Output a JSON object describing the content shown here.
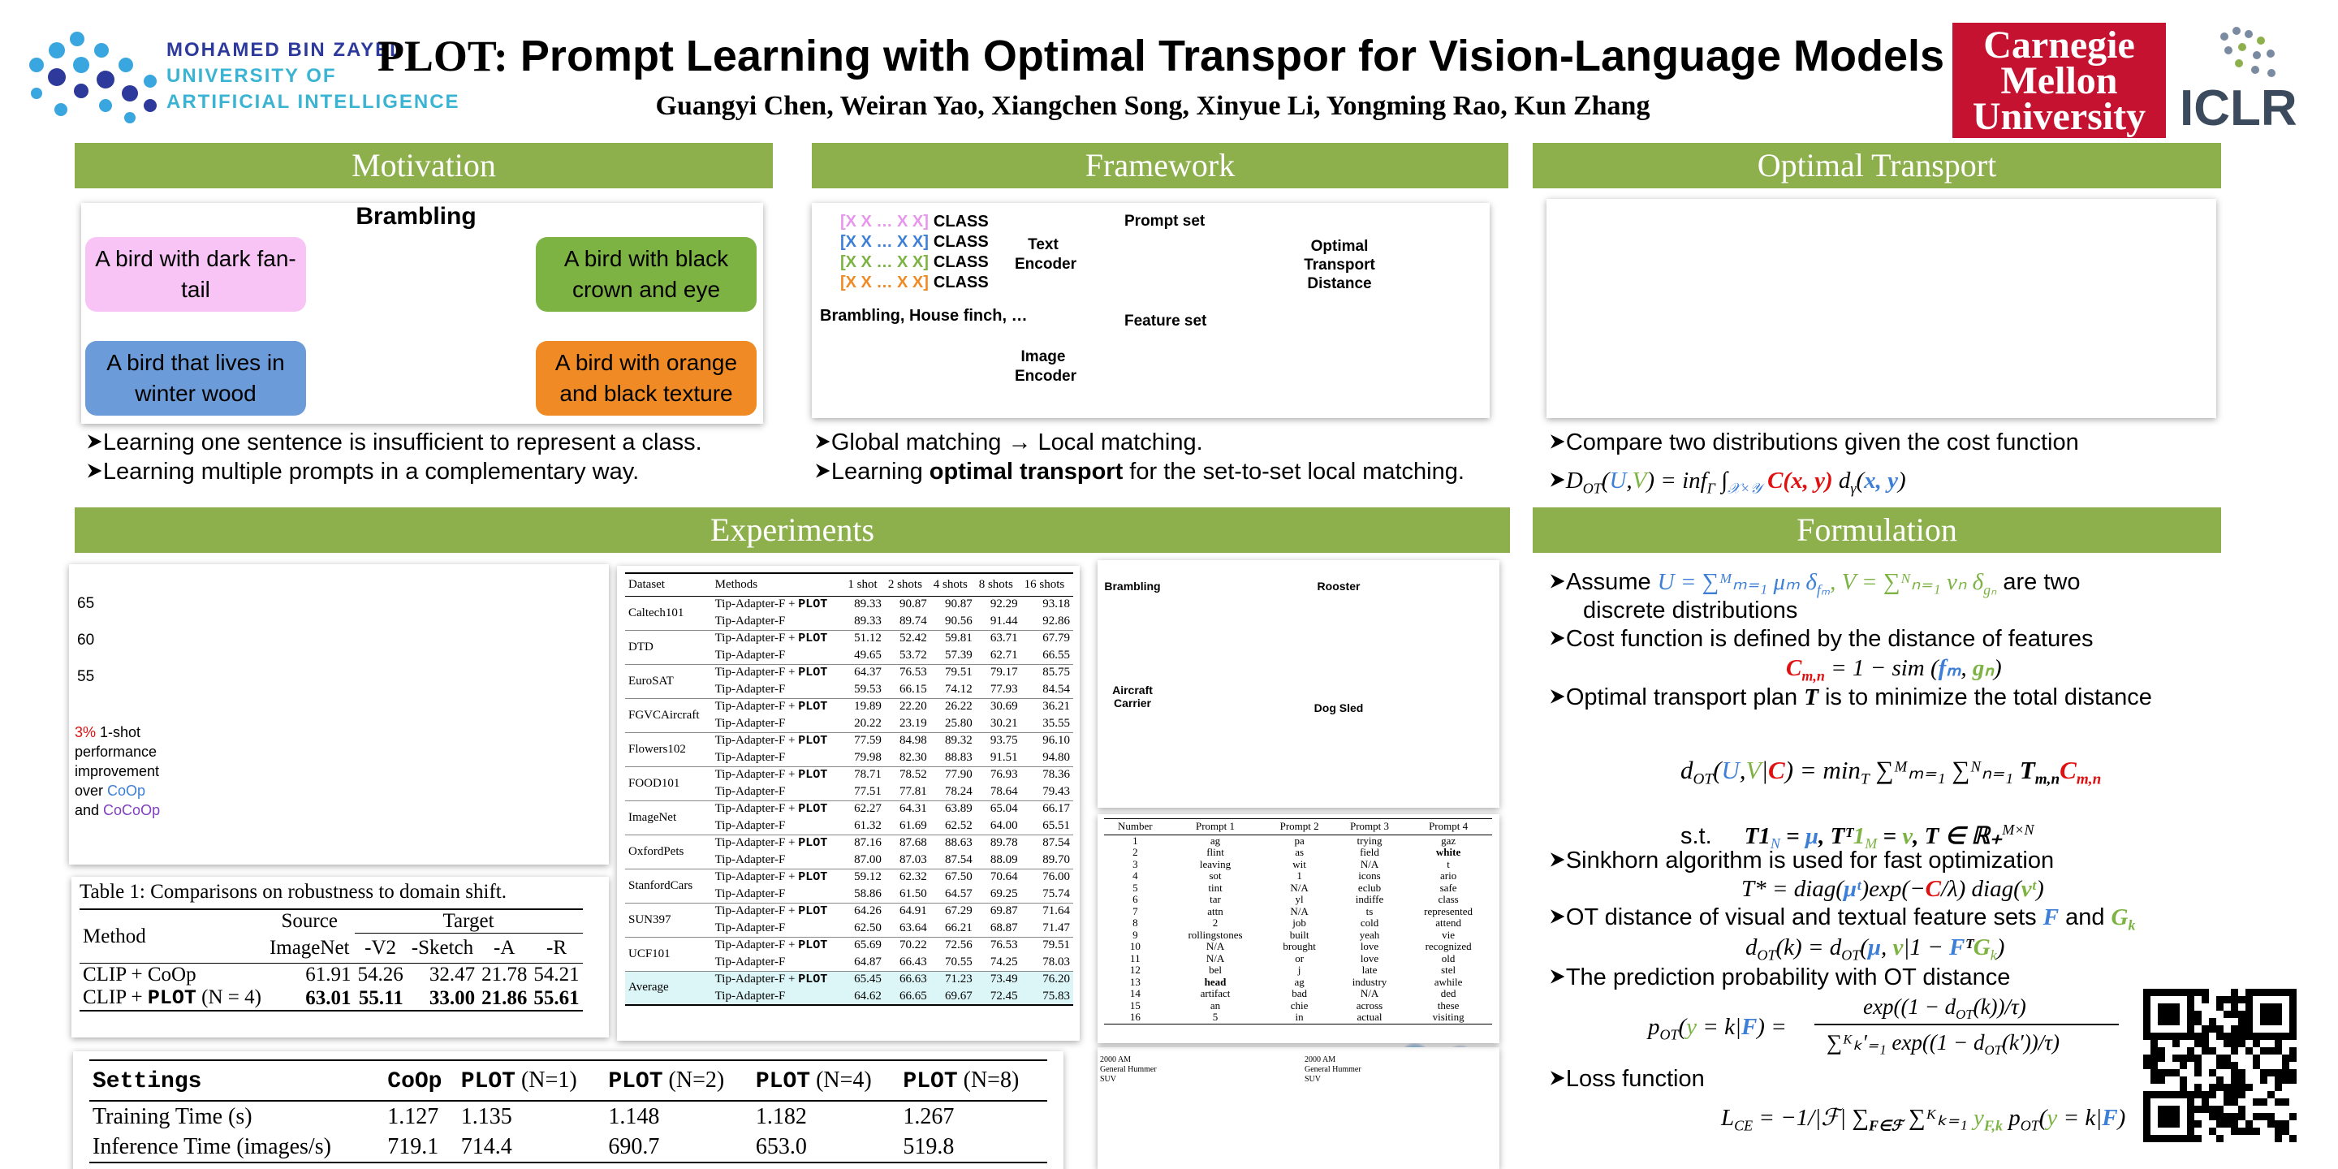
{
  "header": {
    "title": [
      "PLOT:",
      " Prompt Learning with Optimal Transpor for Vision-Language Models"
    ],
    "authors": "Guangyi Chen, Weiran Yao, Xiangchen Song, Xinyue Li, Yongming Rao, Kun Zhang",
    "mbzuai": [
      "MOHAMED BIN ZAYED",
      "UNIVERSITY OF",
      "ARTIFICIAL INTELLIGENCE"
    ],
    "cmu": [
      "Carnegie",
      "Mellon",
      "University"
    ],
    "iclr": "ICLR"
  },
  "motivation": {
    "heading": "Motivation",
    "image_title": "Brambling",
    "prompts": [
      "A bird with dark  fan-tail",
      "A bird that lives in winter wood",
      "A bird with black crown and eye",
      "A bird with orange and black texture"
    ],
    "bullets": [
      "Learning one sentence is insufficient to represent a class.",
      "Learning multiple prompts in a complementary way."
    ]
  },
  "framework": {
    "heading": "Framework",
    "prompt_tokens": [
      "[X X … X X]",
      "[X X … X X]",
      "[X X … X X]",
      "[X X … X X]"
    ],
    "class_label": "CLASS",
    "caption": "Brambling, House finch, …",
    "text_encoder": "Text Encoder",
    "image_encoder": "Image Encoder",
    "prompt_set": "Prompt set",
    "feature_set": "Feature set",
    "ot_distance": "Optimal Transport Distance",
    "bullets": [
      "Global matching → Local matching.",
      [
        "Learning ",
        "optimal transport",
        " for the set-to-set local matching."
      ]
    ]
  },
  "optimal_transport": {
    "heading": "Optimal Transport",
    "bullets": [
      "Compare two distributions given the cost function",
      [
        "D",
        "OT",
        "(",
        "U",
        ",",
        "V",
        ") = inf",
        "Γ",
        " ∫",
        "𝒳×𝒴",
        " ",
        "C(x, y)",
        " d",
        "γ",
        "(",
        "x, y",
        ")"
      ]
    ]
  },
  "experiments": {
    "heading": "Experiments",
    "inset_ticks": [
      "65",
      "60",
      "55"
    ],
    "inset_note": [
      "3%",
      " 1-shot performance improvement over ",
      "CoOp",
      " and ",
      "CoCoOp"
    ],
    "table1": {
      "caption": "Table 1: Comparisons on robustness to domain shift.",
      "method": "Method",
      "source": "Source",
      "target": "Target",
      "subheads": [
        "ImageNet",
        "-V2",
        "-Sketch",
        "-A",
        "-R"
      ],
      "rows": [
        {
          "method": [
            "CLIP + CoOp"
          ],
          "values": [
            "61.91",
            "54.26",
            "32.47",
            "21.78",
            "54.21"
          ]
        },
        {
          "method": [
            "CLIP + ",
            "PLOT",
            " (N = 4)"
          ],
          "values": [
            "63.01",
            "55.11",
            "33.00",
            "21.86",
            "55.61"
          ]
        }
      ]
    },
    "settings": {
      "header": [
        [
          "Settings"
        ],
        [
          "CoOp"
        ],
        [
          "PLOT",
          " (N=1)"
        ],
        [
          "PLOT",
          " (N=2)"
        ],
        [
          "PLOT",
          " (N=4)"
        ],
        [
          "PLOT",
          " (N=8)"
        ]
      ],
      "rows": [
        {
          "label": "Training Time (s)",
          "values": [
            "1.127",
            "1.135",
            "1.148",
            "1.182",
            "1.267"
          ]
        },
        {
          "label": "Inference Time (images/s)",
          "values": [
            "719.1",
            "714.4",
            "690.7",
            "653.0",
            "519.8"
          ]
        }
      ]
    },
    "results": {
      "header": [
        "Dataset",
        "Methods",
        "1 shot",
        "2 shots",
        "4 shots",
        "8 shots",
        "16 shots"
      ],
      "methods": [
        [
          "Tip-Adapter-F + ",
          "PLOT"
        ],
        [
          "Tip-Adapter-F"
        ]
      ],
      "rows": [
        {
          "dataset": "Caltech101",
          "plot": [
            "89.33",
            "90.87",
            "90.87",
            "92.29",
            "93.18"
          ],
          "base": [
            "89.33",
            "89.74",
            "90.56",
            "91.44",
            "92.86"
          ]
        },
        {
          "dataset": "DTD",
          "plot": [
            "51.12",
            "52.42",
            "59.81",
            "63.71",
            "67.79"
          ],
          "base": [
            "49.65",
            "53.72",
            "57.39",
            "62.71",
            "66.55"
          ]
        },
        {
          "dataset": "EuroSAT",
          "plot": [
            "64.37",
            "76.53",
            "79.51",
            "79.17",
            "85.75"
          ],
          "base": [
            "59.53",
            "66.15",
            "74.12",
            "77.93",
            "84.54"
          ]
        },
        {
          "dataset": "FGVCAircraft",
          "plot": [
            "19.89",
            "22.20",
            "26.22",
            "30.69",
            "36.21"
          ],
          "base": [
            "20.22",
            "23.19",
            "25.80",
            "30.21",
            "35.55"
          ]
        },
        {
          "dataset": "Flowers102",
          "plot": [
            "77.59",
            "84.98",
            "89.32",
            "93.75",
            "96.10"
          ],
          "base": [
            "79.98",
            "82.30",
            "88.83",
            "91.51",
            "94.80"
          ]
        },
        {
          "dataset": "FOOD101",
          "plot": [
            "78.71",
            "78.52",
            "77.90",
            "76.93",
            "78.36"
          ],
          "base": [
            "77.51",
            "77.81",
            "78.24",
            "78.64",
            "79.43"
          ]
        },
        {
          "dataset": "ImageNet",
          "plot": [
            "62.27",
            "64.31",
            "63.89",
            "65.04",
            "66.17"
          ],
          "base": [
            "61.32",
            "61.69",
            "62.52",
            "64.00",
            "65.51"
          ]
        },
        {
          "dataset": "OxfordPets",
          "plot": [
            "87.16",
            "87.68",
            "88.63",
            "89.78",
            "87.54"
          ],
          "base": [
            "87.00",
            "87.03",
            "87.54",
            "88.09",
            "89.70"
          ]
        },
        {
          "dataset": "StanfordCars",
          "plot": [
            "59.12",
            "62.32",
            "67.50",
            "70.64",
            "76.00"
          ],
          "base": [
            "58.86",
            "61.50",
            "64.57",
            "69.25",
            "75.74"
          ]
        },
        {
          "dataset": "SUN397",
          "plot": [
            "64.26",
            "64.91",
            "67.29",
            "69.87",
            "71.64"
          ],
          "base": [
            "62.50",
            "63.64",
            "66.21",
            "68.87",
            "71.47"
          ]
        },
        {
          "dataset": "UCF101",
          "plot": [
            "65.69",
            "70.22",
            "72.56",
            "76.53",
            "79.51"
          ],
          "base": [
            "64.87",
            "66.43",
            "70.55",
            "74.25",
            "78.03"
          ]
        },
        {
          "dataset": "Average",
          "plot": [
            "65.45",
            "66.63",
            "71.23",
            "73.49",
            "76.20"
          ],
          "base": [
            "64.62",
            "66.65",
            "69.67",
            "72.45",
            "75.83"
          ]
        }
      ]
    },
    "attention_labels": [
      "Brambling",
      "Rooster",
      "Aircraft Carrier",
      "Dog Sled",
      "2000 AM General Hummer SUV",
      "2000 AM General Hummer SUV"
    ],
    "prompts": {
      "header": [
        "Number",
        "Prompt 1",
        "Prompt 2",
        "Prompt 3",
        "Prompt 4"
      ],
      "rows": [
        [
          "1",
          "ag",
          "pa",
          "trying",
          "gaz"
        ],
        [
          "2",
          "flint",
          "as",
          "field",
          "white"
        ],
        [
          "3",
          "leaving",
          "wit",
          "N/A",
          "t"
        ],
        [
          "4",
          "sot",
          "1",
          "icons",
          "ario"
        ],
        [
          "5",
          "tint",
          "N/A",
          "eclub",
          "safe"
        ],
        [
          "6",
          "tar",
          "yl",
          "indiffe",
          "class"
        ],
        [
          "7",
          "attn",
          "N/A",
          "ts",
          "represented"
        ],
        [
          "8",
          "2",
          "job",
          "cold",
          "attend"
        ],
        [
          "9",
          "rollingstones",
          "built",
          "yeah",
          "vie"
        ],
        [
          "10",
          "N/A",
          "brought",
          "love",
          "recognized"
        ],
        [
          "11",
          "N/A",
          "or",
          "love",
          "old"
        ],
        [
          "12",
          "bel",
          "j",
          "late",
          "stel"
        ],
        [
          "13",
          "head",
          "ag",
          "industry",
          "awhile"
        ],
        [
          "14",
          "artifact",
          "bad",
          "N/A",
          "ded"
        ],
        [
          "15",
          "an",
          "chie",
          "across",
          "these"
        ],
        [
          "16",
          "5",
          "in",
          "actual",
          "visiting"
        ]
      ]
    }
  },
  "formulation": {
    "heading": "Formulation",
    "lines": [
      [
        "Assume ",
        "U  = ∑ᴹₘ₌₁ μₘ δ",
        "fₘ",
        ", V = ∑ᴺₙ₌₁ νₙ δ",
        "gₙ",
        " are two"
      ],
      [
        "discrete distributions"
      ],
      [
        "Cost function is defined by the distance of features"
      ],
      [
        "C",
        "m,n",
        " = 1 − sim (",
        "fₘ",
        ", ",
        "gₙ",
        ")"
      ],
      [
        "Optimal transport plan ",
        "T",
        " is to minimize the total distance"
      ],
      [
        "d",
        "OT",
        "(",
        "U",
        ",",
        "V",
        "|",
        "C",
        ") = min",
        "T",
        "  ∑ᴹₘ₌₁ ∑ᴺₙ₌₁ ",
        "T",
        "m,n",
        "C",
        "m,n"
      ],
      [
        "s.t.",
        "T1",
        "N",
        " = ",
        "μ",
        ", Tᵀ",
        "1",
        "M",
        " = ",
        "ν",
        ", T ∈ ℝ₊",
        "M×N"
      ],
      [
        "Sinkhorn algorithm is used for fast optimization"
      ],
      [
        "T* = diag(",
        "μᵗ",
        ")exp(−",
        "C",
        "/λ) diag(",
        "νᵗ",
        ")"
      ],
      [
        "OT distance of visual and textual feature sets ",
        "F",
        " and ",
        "G",
        "k"
      ],
      [
        "d",
        "OT",
        "(k) = d",
        "OT",
        "(",
        "μ",
        ", ",
        "ν",
        "|1 − ",
        "F",
        "ᵀ",
        "G",
        "k",
        ")"
      ],
      [
        "The prediction probability with OT distance"
      ],
      [
        "p",
        "OT",
        "(",
        "y",
        " = k|",
        "F",
        ") ="
      ],
      [
        "exp((1 − d",
        "OT",
        "(k))/τ)"
      ],
      [
        "∑ᴷₖ′₌₁ exp((1 − d",
        "OT",
        "(k′))/τ)"
      ],
      [
        "Loss function"
      ],
      [
        "L",
        "CE",
        " = −",
        "1/|ℱ|",
        "  ∑",
        "F∈ℱ",
        "  ∑ᴷₖ₌₁ ",
        "y",
        "F,k",
        " p",
        "OT",
        "(",
        "y",
        " = k|",
        "F",
        ")"
      ]
    ]
  }
}
